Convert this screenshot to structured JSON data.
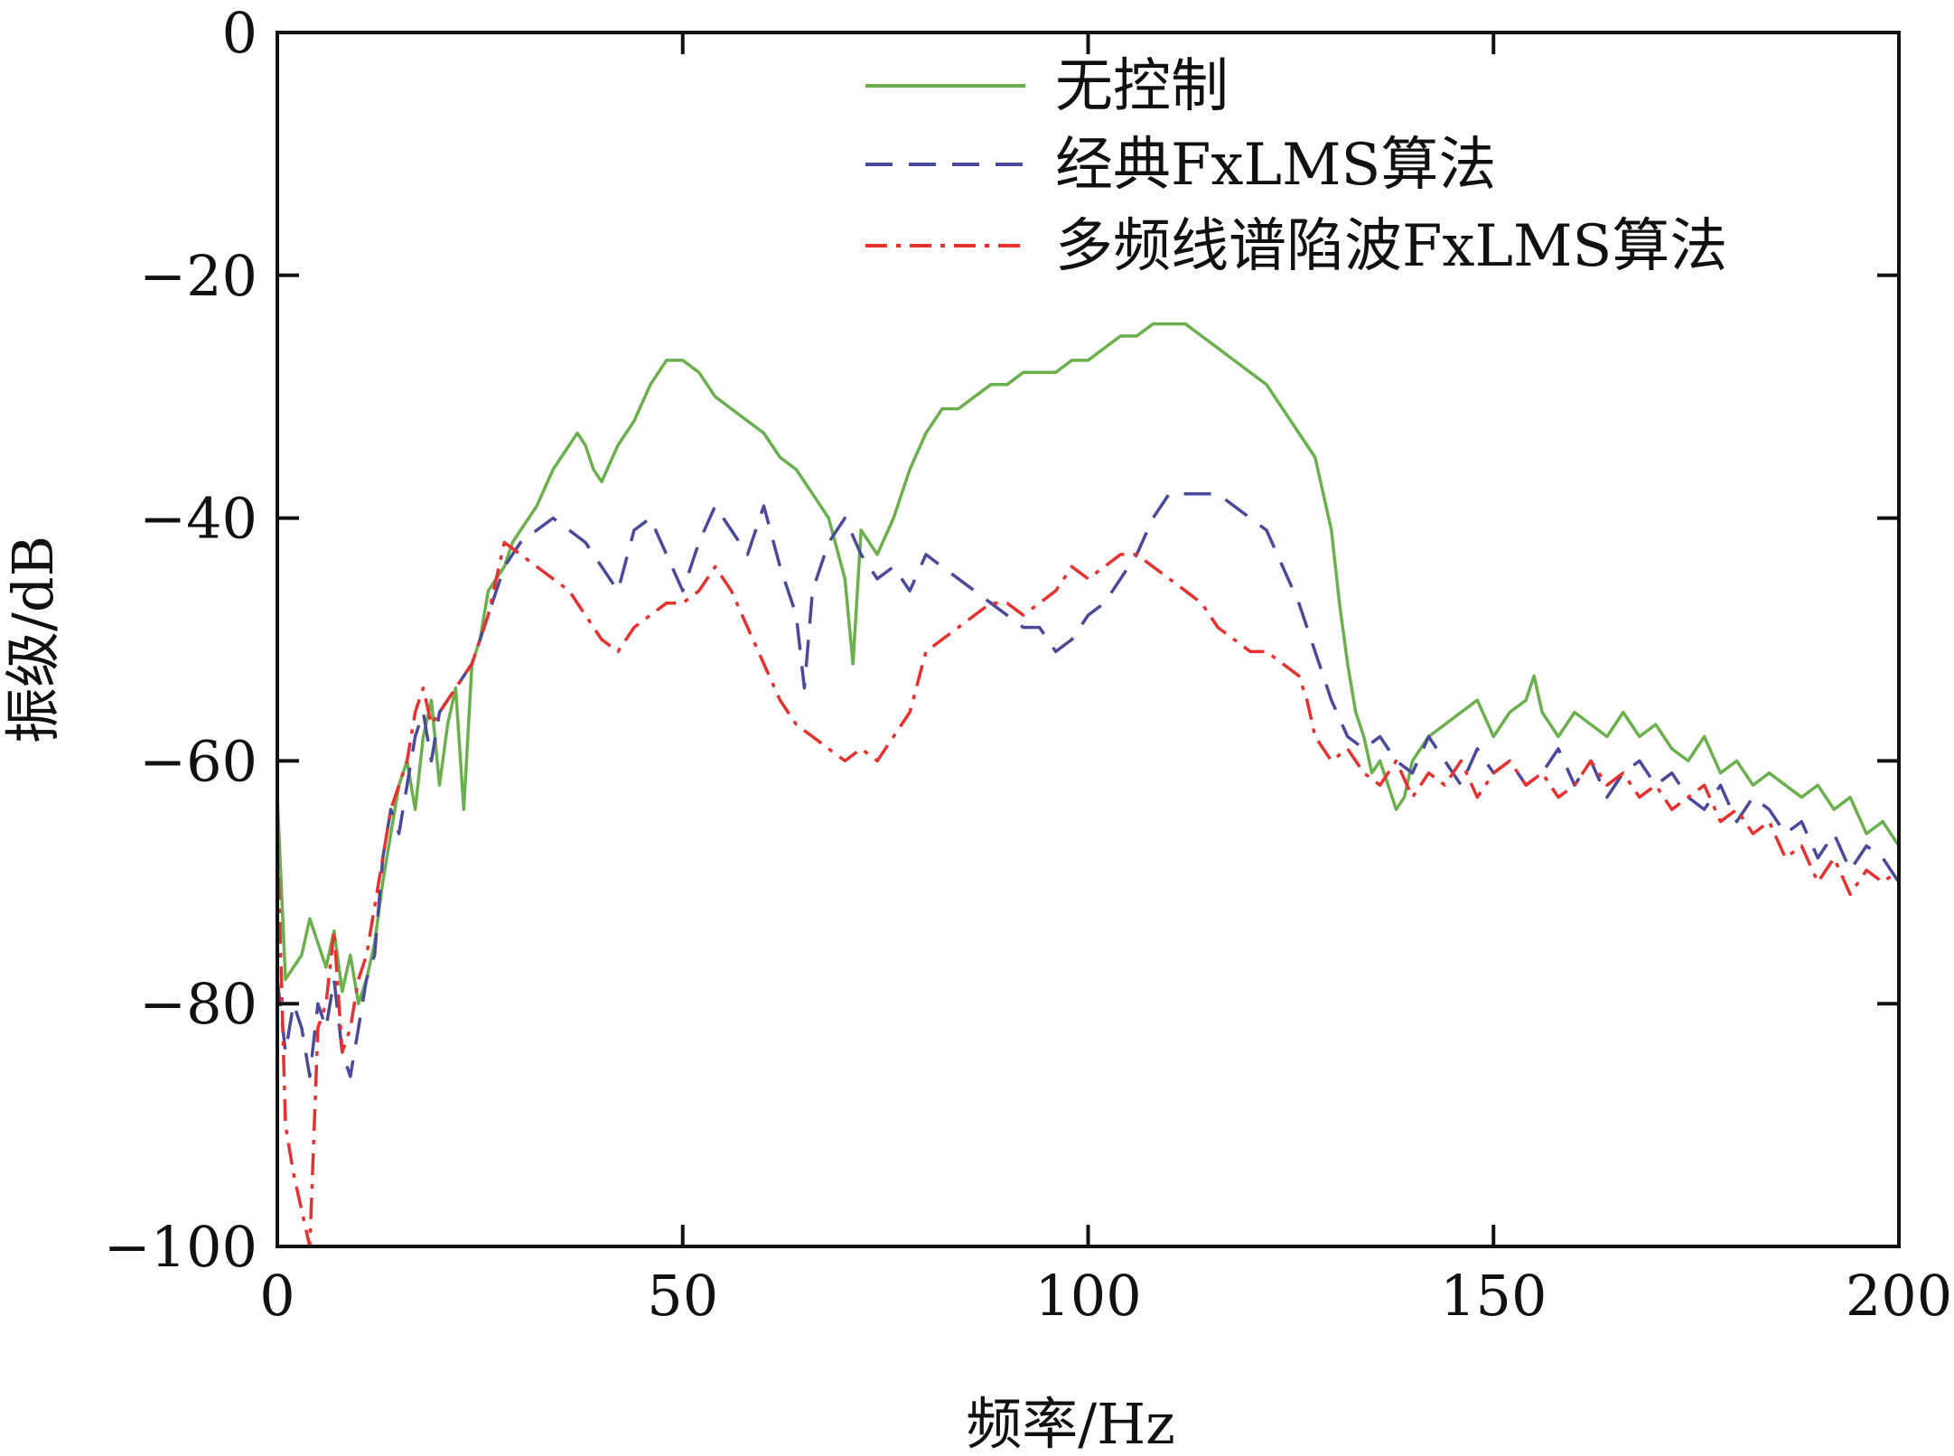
{
  "chart_data": {
    "type": "line",
    "title": "",
    "xlabel": "频率/Hz",
    "ylabel": "振级/dB",
    "xlim": [
      0,
      200
    ],
    "ylim": [
      -100,
      0
    ],
    "xticks": [
      0,
      50,
      100,
      150,
      200
    ],
    "yticks": [
      0,
      -20,
      -40,
      -60,
      -80,
      -100
    ],
    "xtick_labels": [
      "0",
      "50",
      "100",
      "150",
      "200"
    ],
    "ytick_labels": [
      "0",
      "−20",
      "−40",
      "−60",
      "−80",
      "−100"
    ],
    "grid": false,
    "legend_position": "top-center",
    "series": [
      {
        "name": "无控制",
        "color": "#6ab04c",
        "style": "solid",
        "x": [
          0,
          1,
          2,
          3,
          4,
          5,
          6,
          7,
          8,
          9,
          10,
          11,
          12,
          13,
          14,
          15,
          16,
          17,
          18,
          19,
          20,
          21,
          22,
          23,
          24,
          25,
          26,
          27,
          28,
          29,
          30,
          32,
          34,
          36,
          37,
          38,
          39,
          40,
          42,
          44,
          46,
          48,
          50,
          52,
          54,
          56,
          58,
          60,
          62,
          64,
          66,
          68,
          70,
          71,
          72,
          74,
          76,
          78,
          80,
          82,
          84,
          86,
          88,
          90,
          92,
          94,
          96,
          98,
          100,
          102,
          104,
          106,
          108,
          110,
          112,
          114,
          116,
          118,
          120,
          122,
          124,
          126,
          128,
          130,
          131,
          132,
          133,
          134,
          135,
          136,
          137,
          138,
          139,
          140,
          142,
          144,
          146,
          148,
          150,
          152,
          154,
          155,
          156,
          158,
          160,
          162,
          164,
          166,
          168,
          170,
          172,
          174,
          176,
          178,
          180,
          182,
          184,
          186,
          188,
          190,
          192,
          194,
          196,
          198,
          200
        ],
        "y": [
          -63,
          -78,
          -77,
          -76,
          -73,
          -75,
          -77,
          -74,
          -79,
          -76,
          -80,
          -78,
          -75,
          -70,
          -66,
          -62,
          -60,
          -64,
          -58,
          -55,
          -62,
          -57,
          -54,
          -64,
          -52,
          -50,
          -46,
          -45,
          -44,
          -42,
          -41,
          -39,
          -36,
          -34,
          -33,
          -34,
          -36,
          -37,
          -34,
          -32,
          -29,
          -27,
          -27,
          -28,
          -30,
          -31,
          -32,
          -33,
          -35,
          -36,
          -38,
          -40,
          -45,
          -52,
          -41,
          -43,
          -40,
          -36,
          -33,
          -31,
          -31,
          -30,
          -29,
          -29,
          -28,
          -28,
          -28,
          -27,
          -27,
          -26,
          -25,
          -25,
          -24,
          -24,
          -24,
          -25,
          -26,
          -27,
          -28,
          -29,
          -31,
          -33,
          -35,
          -41,
          -47,
          -52,
          -56,
          -58,
          -61,
          -60,
          -62,
          -64,
          -63,
          -60,
          -58,
          -57,
          -56,
          -55,
          -58,
          -56,
          -55,
          -53,
          -56,
          -58,
          -56,
          -57,
          -58,
          -56,
          -58,
          -57,
          -59,
          -60,
          -58,
          -61,
          -60,
          -62,
          -61,
          -62,
          -63,
          -62,
          -64,
          -63,
          -66,
          -65,
          -67
        ]
      },
      {
        "name": "经典FxLMS算法",
        "color": "#4a4a9c",
        "style": "dashed",
        "x": [
          0,
          1,
          2,
          3,
          4,
          5,
          6,
          7,
          8,
          9,
          10,
          11,
          12,
          13,
          14,
          15,
          16,
          17,
          18,
          19,
          20,
          22,
          24,
          26,
          28,
          30,
          32,
          34,
          36,
          38,
          40,
          42,
          44,
          46,
          48,
          50,
          52,
          54,
          56,
          58,
          60,
          62,
          64,
          65,
          66,
          68,
          70,
          72,
          74,
          76,
          78,
          80,
          82,
          84,
          86,
          88,
          90,
          92,
          94,
          96,
          98,
          100,
          102,
          104,
          106,
          108,
          110,
          112,
          114,
          116,
          118,
          120,
          122,
          124,
          126,
          128,
          130,
          132,
          134,
          136,
          138,
          140,
          142,
          144,
          146,
          148,
          150,
          152,
          154,
          156,
          158,
          160,
          162,
          164,
          166,
          168,
          170,
          172,
          174,
          176,
          178,
          180,
          182,
          184,
          186,
          188,
          190,
          192,
          194,
          196,
          198,
          200
        ],
        "y": [
          -78,
          -84,
          -80,
          -82,
          -86,
          -80,
          -82,
          -78,
          -84,
          -86,
          -82,
          -78,
          -76,
          -68,
          -64,
          -66,
          -62,
          -58,
          -56,
          -60,
          -56,
          -54,
          -52,
          -48,
          -44,
          -42,
          -41,
          -40,
          -41,
          -42,
          -44,
          -46,
          -41,
          -40,
          -43,
          -46,
          -42,
          -39,
          -41,
          -43,
          -39,
          -44,
          -48,
          -54,
          -46,
          -42,
          -40,
          -43,
          -45,
          -44,
          -46,
          -43,
          -44,
          -45,
          -46,
          -47,
          -48,
          -49,
          -49,
          -51,
          -50,
          -48,
          -47,
          -45,
          -43,
          -40,
          -38,
          -38,
          -38,
          -38,
          -39,
          -40,
          -41,
          -44,
          -47,
          -51,
          -55,
          -58,
          -59,
          -58,
          -60,
          -61,
          -58,
          -60,
          -62,
          -59,
          -61,
          -60,
          -62,
          -61,
          -59,
          -62,
          -60,
          -63,
          -61,
          -60,
          -62,
          -61,
          -63,
          -64,
          -62,
          -65,
          -63,
          -64,
          -66,
          -65,
          -68,
          -66,
          -69,
          -67,
          -68,
          -70
        ]
      },
      {
        "name": "多频线谱陷波FxLMS算法",
        "color": "#e8302f",
        "style": "dashdot",
        "x": [
          0,
          1,
          2,
          3,
          4,
          5,
          6,
          7,
          8,
          9,
          10,
          11,
          12,
          13,
          14,
          15,
          16,
          17,
          18,
          19,
          20,
          22,
          24,
          26,
          28,
          30,
          32,
          34,
          36,
          38,
          40,
          42,
          44,
          46,
          48,
          50,
          52,
          54,
          56,
          58,
          60,
          62,
          64,
          66,
          68,
          70,
          72,
          74,
          76,
          78,
          80,
          82,
          84,
          86,
          88,
          90,
          92,
          94,
          96,
          98,
          100,
          102,
          104,
          106,
          108,
          110,
          112,
          114,
          116,
          118,
          120,
          122,
          124,
          126,
          127,
          128,
          130,
          132,
          134,
          136,
          138,
          140,
          142,
          144,
          146,
          148,
          150,
          152,
          154,
          156,
          158,
          160,
          162,
          164,
          166,
          168,
          170,
          172,
          174,
          176,
          178,
          180,
          182,
          184,
          186,
          188,
          190,
          192,
          194,
          196,
          198,
          200
        ],
        "y": [
          -66,
          -90,
          -94,
          -97,
          -100,
          -82,
          -80,
          -74,
          -84,
          -82,
          -78,
          -76,
          -72,
          -68,
          -64,
          -62,
          -60,
          -56,
          -54,
          -57,
          -56,
          -54,
          -52,
          -48,
          -42,
          -43,
          -44,
          -45,
          -46,
          -48,
          -50,
          -51,
          -49,
          -48,
          -47,
          -47,
          -46,
          -44,
          -46,
          -49,
          -52,
          -55,
          -57,
          -58,
          -59,
          -60,
          -59,
          -60,
          -58,
          -56,
          -51,
          -50,
          -49,
          -48,
          -47,
          -47,
          -48,
          -47,
          -46,
          -44,
          -45,
          -44,
          -43,
          -43,
          -44,
          -45,
          -46,
          -47,
          -49,
          -50,
          -51,
          -51,
          -52,
          -53,
          -55,
          -58,
          -60,
          -59,
          -61,
          -62,
          -60,
          -63,
          -61,
          -62,
          -60,
          -63,
          -61,
          -60,
          -62,
          -61,
          -63,
          -62,
          -60,
          -62,
          -61,
          -63,
          -62,
          -64,
          -63,
          -62,
          -65,
          -64,
          -66,
          -65,
          -68,
          -67,
          -70,
          -68,
          -71,
          -69,
          -70,
          -69
        ]
      }
    ]
  }
}
